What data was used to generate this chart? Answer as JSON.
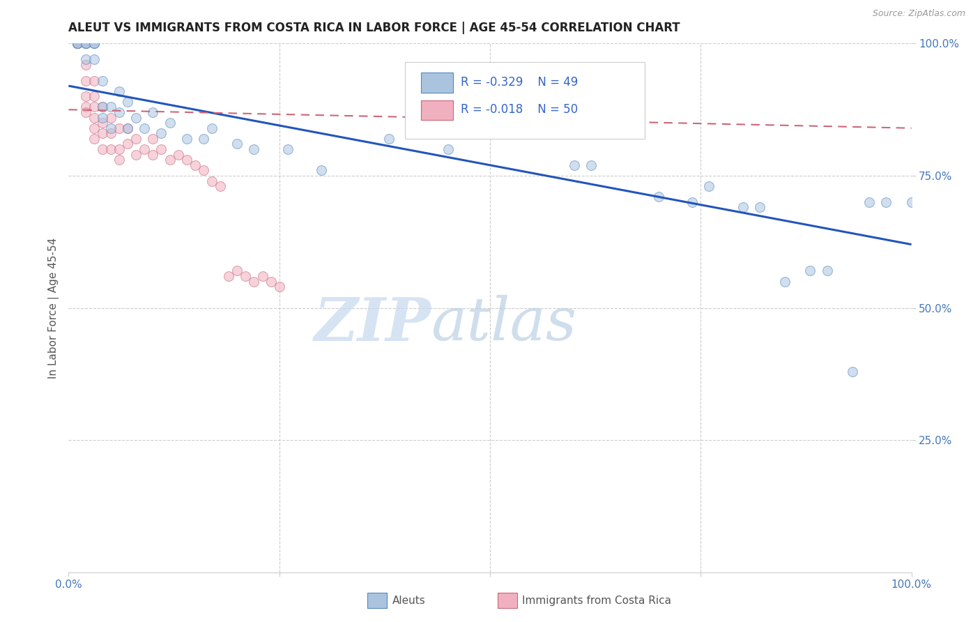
{
  "title": "ALEUT VS IMMIGRANTS FROM COSTA RICA IN LABOR FORCE | AGE 45-54 CORRELATION CHART",
  "source": "Source: ZipAtlas.com",
  "ylabel": "In Labor Force | Age 45-54",
  "xlim": [
    0.0,
    1.0
  ],
  "ylim": [
    0.0,
    1.0
  ],
  "grid_color": "#cccccc",
  "background_color": "#ffffff",
  "aleuts_x": [
    0.01,
    0.01,
    0.01,
    0.02,
    0.02,
    0.02,
    0.02,
    0.03,
    0.03,
    0.03,
    0.03,
    0.04,
    0.04,
    0.04,
    0.05,
    0.05,
    0.06,
    0.06,
    0.07,
    0.07,
    0.08,
    0.09,
    0.1,
    0.11,
    0.12,
    0.14,
    0.16,
    0.17,
    0.2,
    0.22,
    0.26,
    0.3,
    0.38,
    0.45,
    0.5,
    0.6,
    0.62,
    0.7,
    0.74,
    0.76,
    0.8,
    0.82,
    0.85,
    0.88,
    0.9,
    0.93,
    0.95,
    0.97,
    1.0
  ],
  "aleuts_y": [
    1.0,
    1.0,
    1.0,
    1.0,
    1.0,
    1.0,
    0.97,
    1.0,
    1.0,
    1.0,
    0.97,
    0.88,
    0.86,
    0.93,
    0.88,
    0.84,
    0.91,
    0.87,
    0.89,
    0.84,
    0.86,
    0.84,
    0.87,
    0.83,
    0.85,
    0.82,
    0.82,
    0.84,
    0.81,
    0.8,
    0.8,
    0.76,
    0.82,
    0.8,
    0.86,
    0.77,
    0.77,
    0.71,
    0.7,
    0.73,
    0.69,
    0.69,
    0.55,
    0.57,
    0.57,
    0.38,
    0.7,
    0.7,
    0.7
  ],
  "costa_rica_x": [
    0.01,
    0.01,
    0.01,
    0.01,
    0.01,
    0.02,
    0.02,
    0.02,
    0.02,
    0.02,
    0.02,
    0.02,
    0.03,
    0.03,
    0.03,
    0.03,
    0.03,
    0.03,
    0.04,
    0.04,
    0.04,
    0.04,
    0.05,
    0.05,
    0.05,
    0.06,
    0.06,
    0.06,
    0.07,
    0.07,
    0.08,
    0.08,
    0.09,
    0.1,
    0.1,
    0.11,
    0.12,
    0.13,
    0.14,
    0.15,
    0.16,
    0.17,
    0.18,
    0.19,
    0.2,
    0.21,
    0.22,
    0.23,
    0.24,
    0.25
  ],
  "costa_rica_y": [
    1.0,
    1.0,
    1.0,
    1.0,
    1.0,
    1.0,
    1.0,
    0.96,
    0.93,
    0.9,
    0.88,
    0.87,
    0.93,
    0.9,
    0.88,
    0.86,
    0.84,
    0.82,
    0.88,
    0.85,
    0.83,
    0.8,
    0.86,
    0.83,
    0.8,
    0.84,
    0.8,
    0.78,
    0.84,
    0.81,
    0.82,
    0.79,
    0.8,
    0.82,
    0.79,
    0.8,
    0.78,
    0.79,
    0.78,
    0.77,
    0.76,
    0.74,
    0.73,
    0.56,
    0.57,
    0.56,
    0.55,
    0.56,
    0.55,
    0.54
  ],
  "aleuts_color": "#aac4e0",
  "aleuts_edge_color": "#5588bb",
  "costa_rica_color": "#f0b0c0",
  "costa_rica_edge_color": "#cc6677",
  "aleuts_R": "-0.329",
  "aleuts_N": "49",
  "costa_rica_R": "-0.018",
  "costa_rica_N": "50",
  "trend_blue_x0": 0.0,
  "trend_blue_y0": 0.92,
  "trend_blue_x1": 1.0,
  "trend_blue_y1": 0.62,
  "trend_pink_x0": 0.0,
  "trend_pink_y0": 0.875,
  "trend_pink_x1": 1.0,
  "trend_pink_y1": 0.84,
  "watermark_zip": "ZIP",
  "watermark_atlas": "atlas",
  "legend_label_aleuts": "Aleuts",
  "legend_label_costa_rica": "Immigrants from Costa Rica",
  "marker_size": 100,
  "marker_alpha": 0.55
}
